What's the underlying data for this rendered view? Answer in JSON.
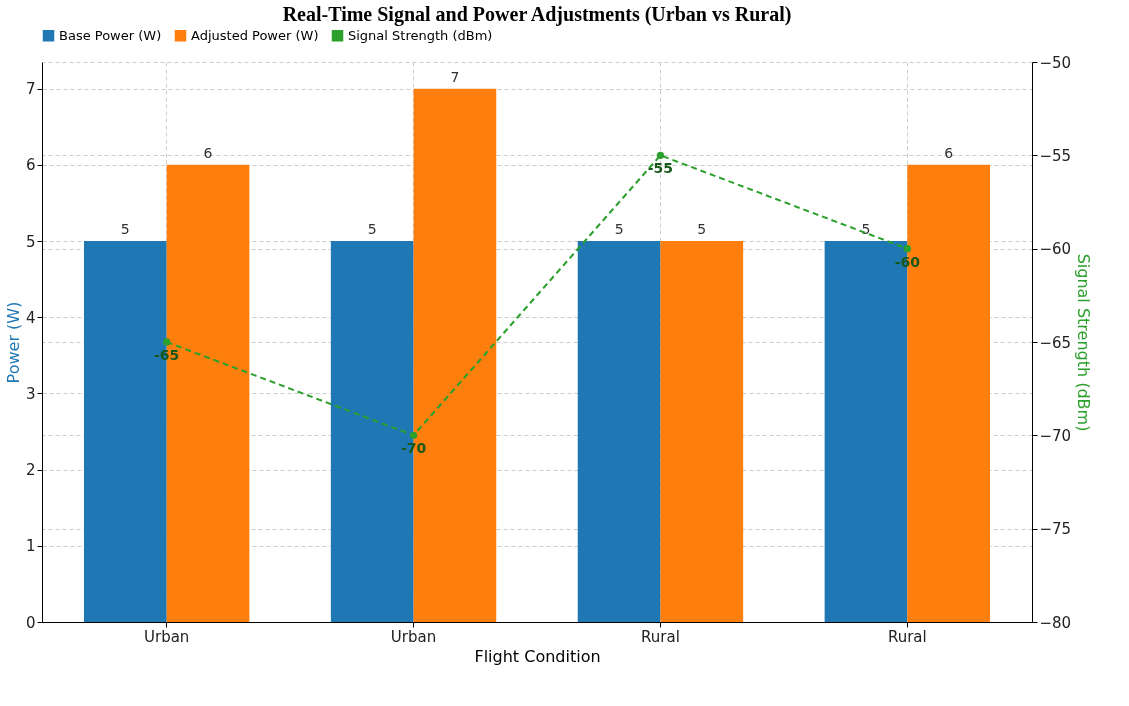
{
  "chart_data": {
    "type": "bar",
    "title": "Real-Time Signal and Power Adjustments (Urban vs Rural)",
    "categories": [
      "Urban",
      "Urban",
      "Rural",
      "Rural"
    ],
    "xlabel": "Flight Condition",
    "ylabel": "Power (W)",
    "y2label": "Signal Strength (dBm)",
    "series": [
      {
        "name": "Base Power (W)",
        "color": "#1f77b4",
        "values": [
          5,
          5,
          5,
          5
        ]
      },
      {
        "name": "Adjusted Power (W)",
        "color": "#ff7f0e",
        "values": [
          6,
          7,
          5,
          6
        ]
      },
      {
        "name": "Signal Strength (dBm)",
        "color": "#2ca02c",
        "values": [
          -65,
          -70,
          -55,
          -60
        ],
        "type": "line",
        "axis": "y2",
        "marker": "circle",
        "line_style": "dashed"
      }
    ],
    "ylim": [
      0,
      7.35
    ],
    "yticks": [
      0,
      1,
      2,
      3,
      4,
      5,
      6,
      7
    ],
    "y2lim": [
      -80,
      -50
    ],
    "y2ticks": [
      -80,
      -75,
      -70,
      -65,
      -60,
      -55,
      -50
    ],
    "data_labels": true,
    "grid": true,
    "legend": "top"
  }
}
